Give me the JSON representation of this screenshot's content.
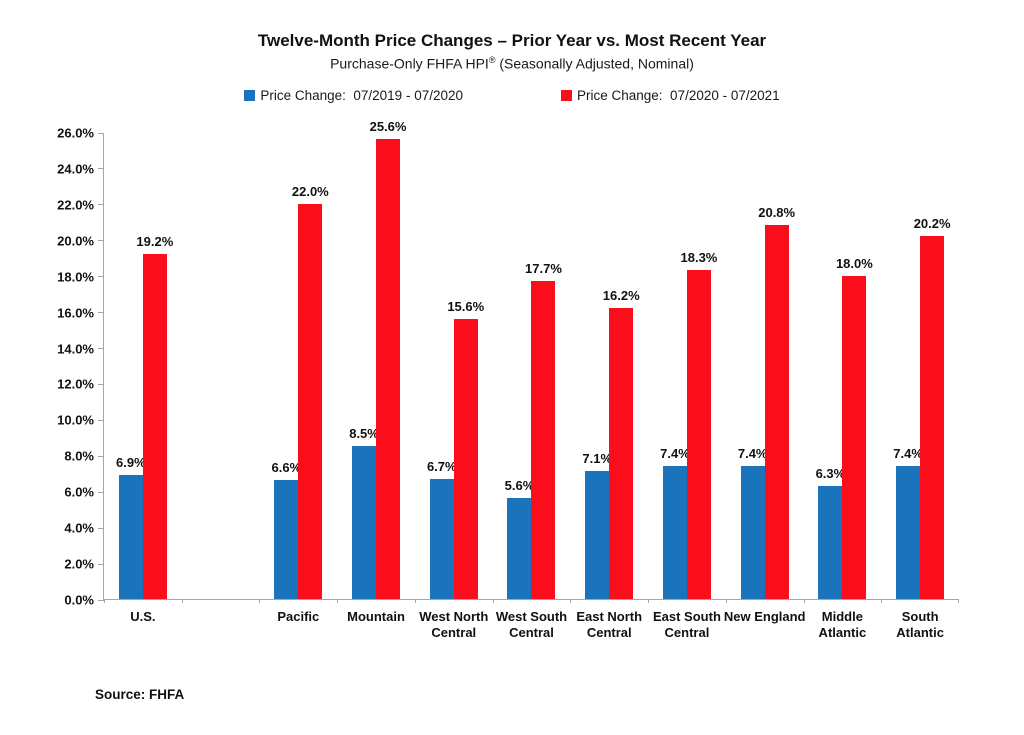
{
  "header": {
    "title": "Twelve-Month Price Changes – Prior Year vs. Most Recent Year",
    "subtitle_pre": "Purchase-Only FHFA HPI",
    "subtitle_sup": "®",
    "subtitle_post": " (Seasonally Adjusted, Nominal)"
  },
  "legend": {
    "items": [
      {
        "label": "Price Change:  07/2019 - 07/2020",
        "color": "#1B73BB"
      },
      {
        "label": "Price Change:  07/2020 - 07/2021",
        "color": "#FA0E1C"
      }
    ]
  },
  "source": "Source: FHFA",
  "colors": {
    "blue": "#1B73BB",
    "red": "#FA0E1C",
    "axis": "#A6A6A6"
  },
  "chart_data": {
    "type": "bar",
    "title": "Twelve-Month Price Changes – Prior Year vs. Most Recent Year",
    "subtitle": "Purchase-Only FHFA HPI® (Seasonally Adjusted, Nominal)",
    "categories": [
      "U.S.",
      "Pacific",
      "Mountain",
      "West North Central",
      "West South Central",
      "East North Central",
      "East South Central",
      "New England",
      "Middle Atlantic",
      "South Atlantic"
    ],
    "category_label_lines": [
      [
        "U.S."
      ],
      [
        "Pacific"
      ],
      [
        "Mountain"
      ],
      [
        "West North",
        "Central"
      ],
      [
        "West South",
        "Central"
      ],
      [
        "East North",
        "Central"
      ],
      [
        "East South",
        "Central"
      ],
      [
        "New England"
      ],
      [
        "Middle",
        "Atlantic"
      ],
      [
        "South",
        "Atlantic"
      ]
    ],
    "blank_slot_after_index": 0,
    "series": [
      {
        "name": "Price Change: 07/2019 - 07/2020",
        "color": "#1B73BB",
        "values": [
          6.9,
          6.6,
          8.5,
          6.7,
          5.6,
          7.1,
          7.4,
          7.4,
          6.3,
          7.4
        ]
      },
      {
        "name": "Price Change: 07/2020 - 07/2021",
        "color": "#FA0E1C",
        "values": [
          19.2,
          22.0,
          25.6,
          15.6,
          17.7,
          16.2,
          18.3,
          20.8,
          18.0,
          20.2
        ]
      }
    ],
    "data_labels": true,
    "data_label_format": "one_decimal_percent",
    "ylabel": "",
    "xlabel": "",
    "ylim": [
      0,
      26
    ],
    "ytick_step": 2,
    "ytick_format": "one_decimal_percent",
    "grid": false,
    "legend_position": "top"
  }
}
